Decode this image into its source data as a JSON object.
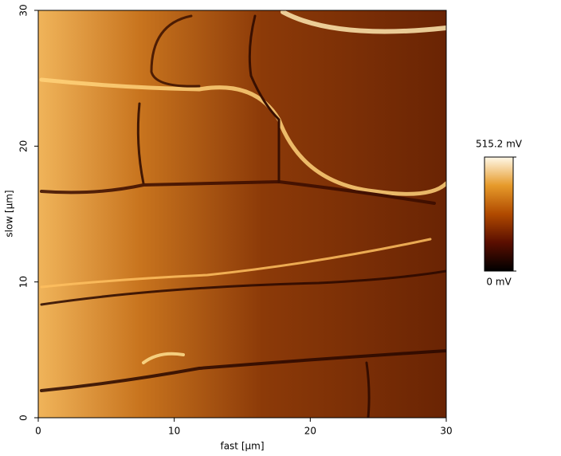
{
  "chart_data": {
    "type": "heatmap",
    "xlabel": "fast [µm]",
    "ylabel": "slow [µm]",
    "xlim": [
      0,
      30
    ],
    "ylim": [
      0,
      30
    ],
    "xticks": [
      0,
      10,
      20,
      30
    ],
    "yticks": [
      0,
      10,
      20,
      30
    ],
    "zlim": [
      0,
      515.2
    ],
    "zticks": [
      {
        "value": 0,
        "label": "0 mV"
      },
      {
        "value": 515.2,
        "label": "515.2 mV"
      }
    ],
    "colormap": [
      "#000000",
      "#5a0e00",
      "#b04a00",
      "#e69a2a",
      "#fff8e8"
    ]
  }
}
